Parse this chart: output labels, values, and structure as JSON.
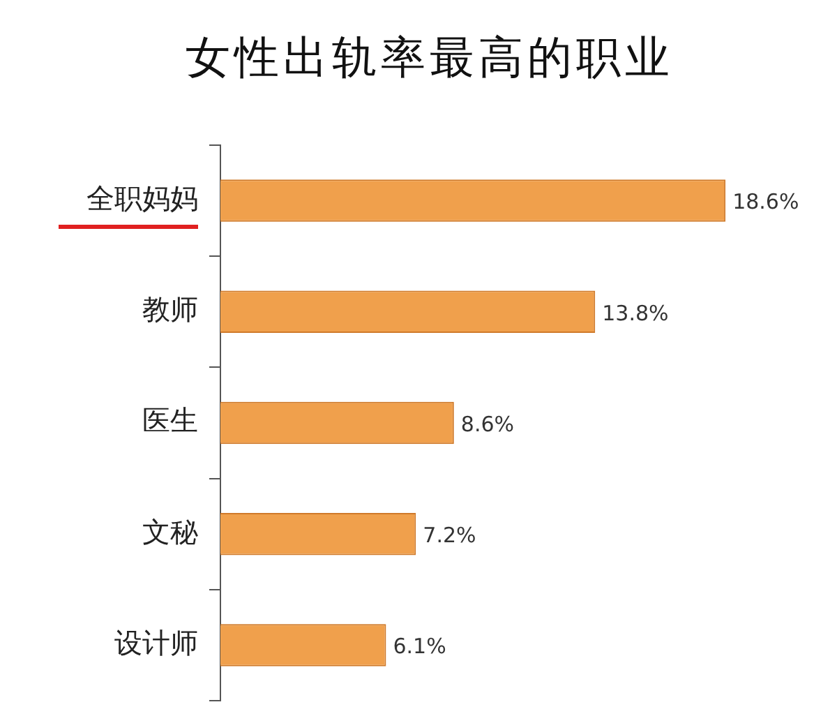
{
  "chart_data": {
    "type": "bar",
    "orientation": "horizontal",
    "title": "女性出轨率最高的职业",
    "categories": [
      "全职妈妈",
      "教师",
      "医生",
      "文秘",
      "设计师"
    ],
    "values": [
      18.6,
      13.8,
      8.6,
      7.2,
      6.1
    ],
    "value_labels": [
      "18.6%",
      "13.8%",
      "8.6%",
      "7.2%",
      "6.1%"
    ],
    "color": "#f0a04c"
  }
}
